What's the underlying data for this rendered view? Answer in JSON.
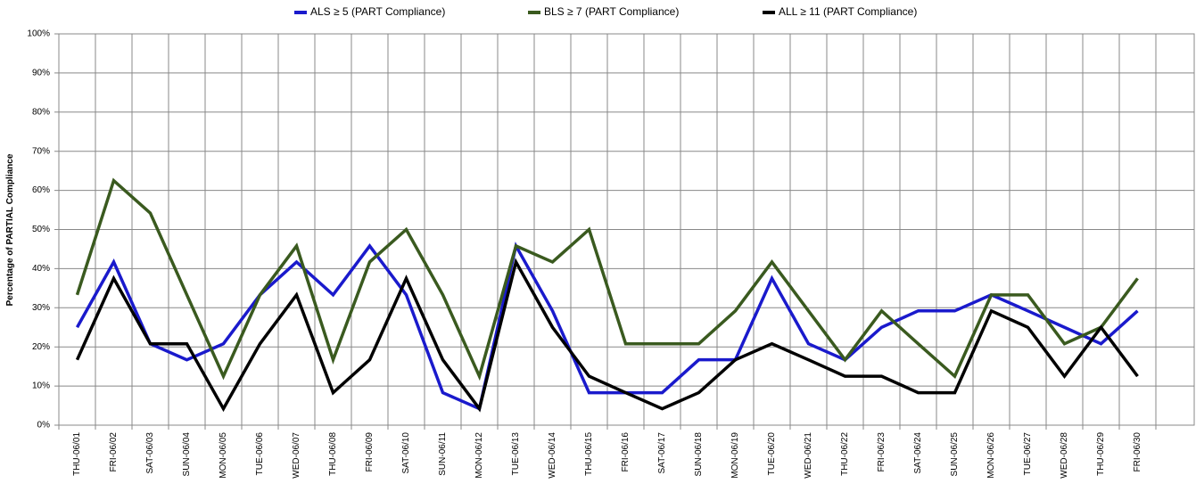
{
  "chart_data": {
    "type": "line",
    "y_label": "Percentage of PARTIAL Compliance",
    "categories": [
      "THU-06/01",
      "FRI-06/02",
      "SAT-06/03",
      "SUN-06/04",
      "MON-06/05",
      "TUE-06/06",
      "WED-06/07",
      "THU-06/08",
      "FRI-06/09",
      "SAT-06/10",
      "SUN-06/11",
      "MON-06/12",
      "TUE-06/13",
      "WED-06/14",
      "THU-06/15",
      "FRI-06/16",
      "SAT-06/17",
      "SUN-06/18",
      "MON-06/19",
      "TUE-06/20",
      "WED-06/21",
      "THU-06/22",
      "FRI-06/23",
      "SAT-06/24",
      "SUN-06/25",
      "MON-06/26",
      "TUE-06/27",
      "WED-06/28",
      "THU-06/29",
      "FRI-06/30"
    ],
    "series": [
      {
        "name": "ALS ≥ 5 (PART Compliance)",
        "color": "#1a1acc",
        "values": [
          25,
          41.7,
          20.8,
          16.7,
          20.8,
          33.3,
          41.7,
          33.3,
          45.8,
          33.3,
          8.3,
          4.2,
          45.8,
          29.2,
          8.3,
          8.3,
          8.3,
          16.7,
          16.7,
          37.5,
          20.8,
          16.7,
          25,
          29.2,
          29.2,
          33.3,
          29.2,
          25,
          20.8,
          29.2
        ]
      },
      {
        "name": "BLS ≥ 7 (PART Compliance)",
        "color": "#3a5a1f",
        "values": [
          33.3,
          62.5,
          54.2,
          33.3,
          12.5,
          33.3,
          45.8,
          16.7,
          41.7,
          50,
          33.3,
          12.5,
          45.8,
          41.7,
          50,
          20.8,
          20.8,
          20.8,
          29.2,
          41.7,
          29.2,
          16.7,
          29.2,
          20.8,
          12.5,
          33.3,
          33.3,
          20.8,
          25,
          37.5
        ]
      },
      {
        "name": "ALL ≥ 11 (PART Compliance)",
        "color": "#000000",
        "values": [
          16.7,
          37.5,
          20.8,
          20.8,
          4.2,
          20.8,
          33.3,
          8.3,
          16.7,
          37.5,
          16.7,
          4.2,
          41.7,
          25,
          12.5,
          8.3,
          4.2,
          8.3,
          16.7,
          20.8,
          16.7,
          12.5,
          12.5,
          8.3,
          8.3,
          29.2,
          25,
          12.5,
          25,
          12.5
        ]
      }
    ],
    "ylim": [
      0,
      100
    ],
    "yticks": [
      {
        "value": 0,
        "label": "0%"
      },
      {
        "value": 10,
        "label": "10%"
      },
      {
        "value": 20,
        "label": "20%"
      },
      {
        "value": 30,
        "label": "30%"
      },
      {
        "value": 40,
        "label": "40%"
      },
      {
        "value": 50,
        "label": "50%"
      },
      {
        "value": 60,
        "label": "60%"
      },
      {
        "value": 70,
        "label": "70%"
      },
      {
        "value": 80,
        "label": "80%"
      },
      {
        "value": 90,
        "label": "90%"
      },
      {
        "value": 100,
        "label": "100%"
      }
    ],
    "grid": true,
    "legend": "top"
  }
}
